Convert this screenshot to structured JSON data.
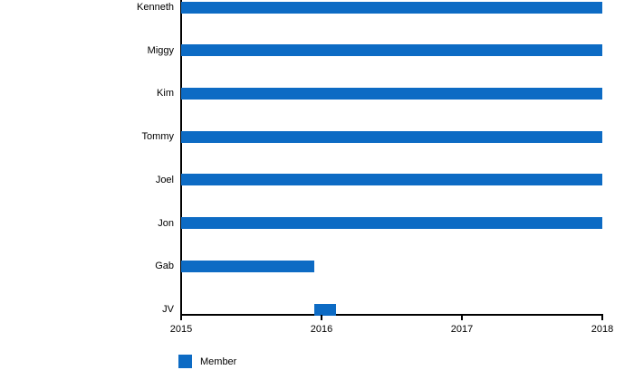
{
  "page": {
    "background": "#ffffff",
    "text_color": "#000000",
    "axis_color": "#000000"
  },
  "chart_data": {
    "type": "bar",
    "orientation": "horizontal",
    "title": "",
    "xlabel": "",
    "ylabel": "",
    "categories": [
      "Kenneth",
      "Miggy",
      "Kim",
      "Tommy",
      "Joel",
      "Jon",
      "Gab",
      "JV"
    ],
    "series": [
      {
        "name": "Member",
        "color": "#0d6bc4",
        "ranges": [
          [
            2015,
            2018
          ],
          [
            2015,
            2018
          ],
          [
            2015,
            2018
          ],
          [
            2015,
            2018
          ],
          [
            2015,
            2018
          ],
          [
            2015,
            2018
          ],
          [
            2015,
            2015.95
          ],
          [
            2015.95,
            2016.1
          ]
        ]
      }
    ],
    "xlim": [
      2015,
      2018
    ],
    "xticks": [
      "2015",
      "2016",
      "2017",
      "2018"
    ],
    "grid": false,
    "legend": {
      "label": "Member",
      "position": "bottom-left"
    }
  }
}
